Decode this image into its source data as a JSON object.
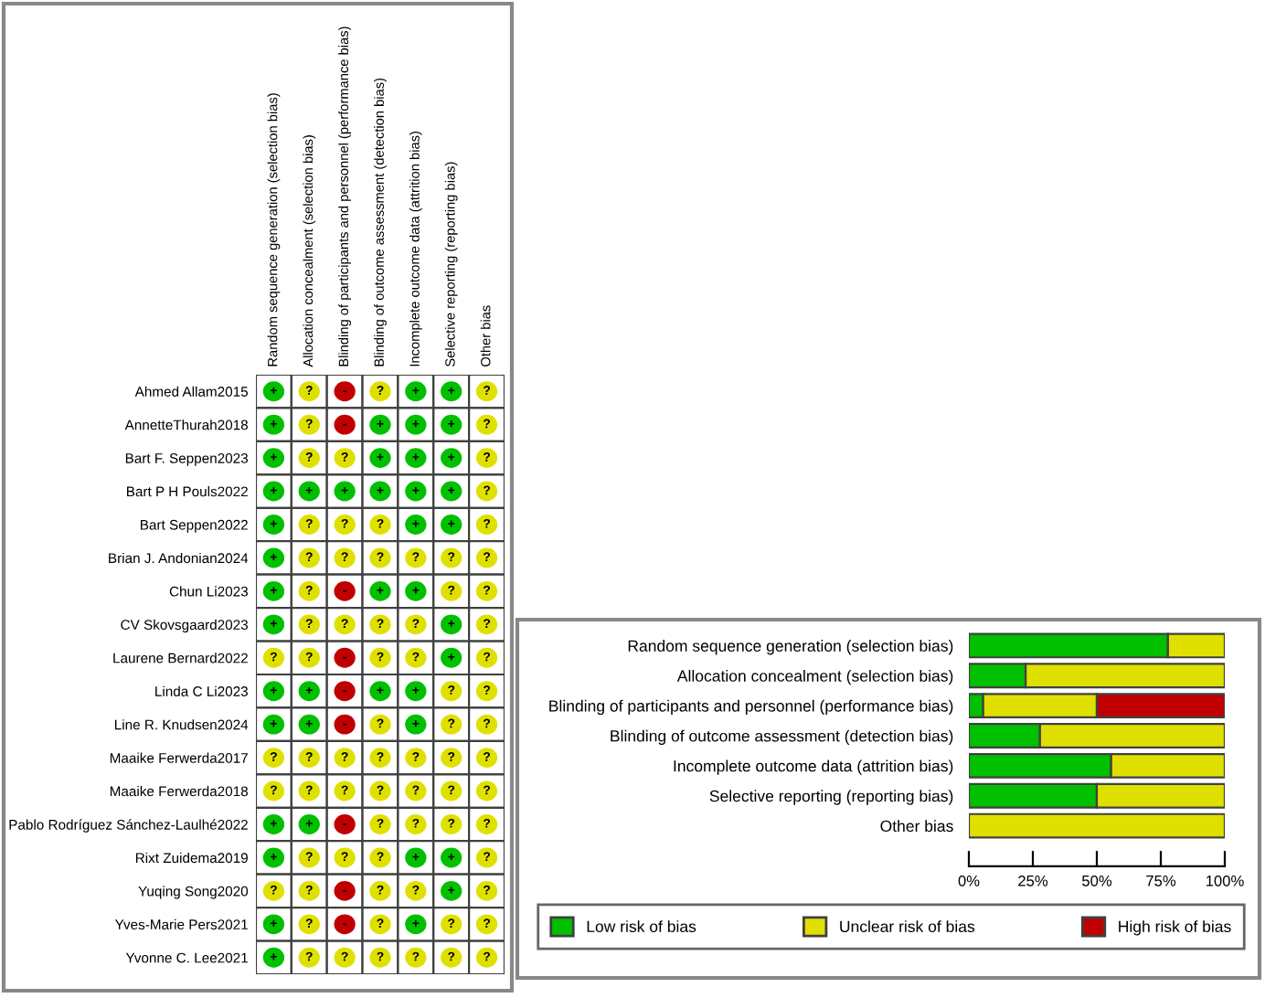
{
  "chart_data": [
    {
      "type": "heatmap",
      "categories": [
        "Random sequence generation (selection bias)",
        "Allocation concealment (selection bias)",
        "Blinding of participants and personnel (performance bias)",
        "Blinding of outcome assessment (detection bias)",
        "Incomplete outcome data (attrition bias)",
        "Selective reporting (reporting bias)",
        "Other bias"
      ],
      "y_categories": [
        "Ahmed Allam2015",
        "AnnetteThurah2018",
        "Bart F. Seppen2023",
        "Bart P H Pouls2022",
        "Bart Seppen2022",
        "Brian J. Andonian2024",
        "Chun Li2023",
        "CV Skovsgaard2023",
        "Laurene Bernard2022",
        "Linda C Li2023",
        "Line R. Knudsen2024",
        "Maaike Ferwerda2017",
        "Maaike Ferwerda2018",
        "Pablo Rodríguez Sánchez-Laulhé2022",
        "Rixt Zuidema2019",
        "Yuqing Song2020",
        "Yves-Marie Pers2021",
        "Yvonne C. Lee2021"
      ],
      "cells": [
        [
          null,
          null,
          null,
          null,
          null,
          null,
          null
        ],
        [
          null,
          null,
          null,
          null,
          null,
          null,
          null
        ],
        [
          null,
          null,
          null,
          null,
          null,
          null,
          null
        ],
        [
          null,
          null,
          null,
          null,
          null,
          null,
          null
        ],
        [
          null,
          null,
          null,
          null,
          null,
          null,
          null
        ],
        [
          null,
          null,
          null,
          null,
          null,
          null,
          null
        ],
        [
          null,
          null,
          null,
          null,
          null,
          null,
          null
        ],
        [
          null,
          null,
          null,
          null,
          null,
          null,
          null
        ],
        [
          null,
          null,
          null,
          null,
          null,
          null,
          null
        ],
        [
          null,
          null,
          null,
          null,
          null,
          null,
          null
        ],
        [
          null,
          null,
          null,
          null,
          null,
          null,
          null
        ],
        [
          null,
          null,
          null,
          null,
          null,
          null,
          null
        ],
        [
          null,
          null,
          null,
          null,
          null,
          null,
          null
        ],
        [
          null,
          null,
          null,
          null,
          null,
          null,
          null
        ],
        [
          null,
          null,
          null,
          null,
          null,
          null,
          null
        ],
        [
          null,
          null,
          null,
          null,
          null,
          null,
          null
        ],
        [
          null,
          null,
          null,
          null,
          null,
          null,
          null
        ],
        [
          null,
          null,
          null,
          null,
          null,
          null,
          null
        ]
      ],
      "colors": [
        [
          "#00c000",
          "#e0e000",
          "#c00000",
          "#e0e000",
          "#00c000",
          "#00c000",
          "#e0e000"
        ],
        [
          "#00c000",
          "#e0e000",
          "#c00000",
          "#00c000",
          "#00c000",
          "#00c000",
          "#e0e000"
        ],
        [
          "#00c000",
          "#e0e000",
          "#e0e000",
          "#00c000",
          "#00c000",
          "#00c000",
          "#e0e000"
        ],
        [
          "#00c000",
          "#00c000",
          "#00c000",
          "#00c000",
          "#00c000",
          "#00c000",
          "#e0e000"
        ],
        [
          "#00c000",
          "#e0e000",
          "#e0e000",
          "#e0e000",
          "#00c000",
          "#00c000",
          "#e0e000"
        ],
        [
          "#00c000",
          "#e0e000",
          "#e0e000",
          "#e0e000",
          "#e0e000",
          "#e0e000",
          "#e0e000"
        ],
        [
          "#00c000",
          "#e0e000",
          "#c00000",
          "#00c000",
          "#00c000",
          "#e0e000",
          "#e0e000"
        ],
        [
          "#00c000",
          "#e0e000",
          "#e0e000",
          "#e0e000",
          "#e0e000",
          "#00c000",
          "#e0e000"
        ],
        [
          "#e0e000",
          "#e0e000",
          "#c00000",
          "#e0e000",
          "#e0e000",
          "#00c000",
          "#e0e000"
        ],
        [
          "#00c000",
          "#00c000",
          "#c00000",
          "#00c000",
          "#00c000",
          "#e0e000",
          "#e0e000"
        ],
        [
          "#00c000",
          "#00c000",
          "#c00000",
          "#e0e000",
          "#00c000",
          "#e0e000",
          "#e0e000"
        ],
        [
          "#e0e000",
          "#e0e000",
          "#e0e000",
          "#e0e000",
          "#e0e000",
          "#e0e000",
          "#e0e000"
        ],
        [
          "#e0e000",
          "#e0e000",
          "#e0e000",
          "#e0e000",
          "#e0e000",
          "#e0e000",
          "#e0e000"
        ],
        [
          "#00c000",
          "#00c000",
          "#c00000",
          "#e0e000",
          "#e0e000",
          "#e0e000",
          "#e0e000"
        ],
        [
          "#00c000",
          "#e0e000",
          "#e0e000",
          "#e0e000",
          "#00c000",
          "#00c000",
          "#e0e000"
        ],
        [
          "#e0e000",
          "#e0e000",
          "#c00000",
          "#e0e000",
          "#e0e000",
          "#00c000",
          "#e0e000"
        ],
        [
          "#00c000",
          "#e0e000",
          "#c00000",
          "#e0e000",
          "#00c000",
          "#e0e000",
          "#e0e000"
        ],
        [
          "#00c000",
          "#e0e000",
          "#e0e000",
          "#e0e000",
          "#e0e000",
          "#e0e000",
          "#e0e000"
        ]
      ],
      "cell_labels": [
        [
          "+",
          "?",
          "-",
          "?",
          "+",
          "+",
          "?"
        ],
        [
          "+",
          "?",
          "-",
          "+",
          "+",
          "+",
          "?"
        ],
        [
          "+",
          "?",
          "?",
          "+",
          "+",
          "+",
          "?"
        ],
        [
          "+",
          "+",
          "+",
          "+",
          "+",
          "+",
          "?"
        ],
        [
          "+",
          "?",
          "?",
          "?",
          "+",
          "+",
          "?"
        ],
        [
          "+",
          "?",
          "?",
          "?",
          "?",
          "?",
          "?"
        ],
        [
          "+",
          "?",
          "-",
          "+",
          "+",
          "?",
          "?"
        ],
        [
          "+",
          "?",
          "?",
          "?",
          "?",
          "+",
          "?"
        ],
        [
          "?",
          "?",
          "-",
          "?",
          "?",
          "+",
          "?"
        ],
        [
          "+",
          "+",
          "-",
          "+",
          "+",
          "?",
          "?"
        ],
        [
          "+",
          "+",
          "-",
          "?",
          "+",
          "?",
          "?"
        ],
        [
          "?",
          "?",
          "?",
          "?",
          "?",
          "?",
          "?"
        ],
        [
          "?",
          "?",
          "?",
          "?",
          "?",
          "?",
          "?"
        ],
        [
          "+",
          "+",
          "-",
          "?",
          "?",
          "?",
          "?"
        ],
        [
          "+",
          "?",
          "?",
          "?",
          "+",
          "+",
          "?"
        ],
        [
          "?",
          "?",
          "-",
          "?",
          "?",
          "+",
          "?"
        ],
        [
          "+",
          "?",
          "-",
          "?",
          "+",
          "?",
          "?"
        ],
        [
          "+",
          "?",
          "?",
          "?",
          "?",
          "?",
          "?"
        ]
      ]
    },
    {
      "type": "bar",
      "orientation": "horizontal",
      "stacked": true,
      "categories": [
        "Random sequence generation (selection bias)",
        "Allocation concealment (selection bias)",
        "Blinding of participants and personnel (performance bias)",
        "Blinding of outcome assessment (detection bias)",
        "Incomplete outcome data (attrition bias)",
        "Selective reporting (reporting bias)",
        "Other bias"
      ],
      "series": [
        {
          "name": "Low risk of bias",
          "color": "#00c000",
          "values": [
            77.8,
            22.2,
            5.6,
            27.8,
            55.6,
            50,
            null
          ]
        },
        {
          "name": "Unclear risk of bias",
          "color": "#e0e000",
          "values": [
            22.2,
            77.8,
            44.4,
            72.2,
            44.4,
            50,
            100
          ]
        },
        {
          "name": "High risk of bias",
          "color": "#c00000",
          "values": [
            null,
            null,
            50,
            null,
            null,
            null,
            null
          ]
        }
      ],
      "xlim": [
        0,
        100
      ],
      "xticks": [
        {
          "value": 0,
          "label": "0%"
        },
        {
          "value": 25,
          "label": "25%"
        },
        {
          "value": 50,
          "label": "50%"
        },
        {
          "value": 75,
          "label": "75%"
        },
        {
          "value": 100,
          "label": "100%"
        }
      ],
      "legend": "bottom"
    }
  ]
}
